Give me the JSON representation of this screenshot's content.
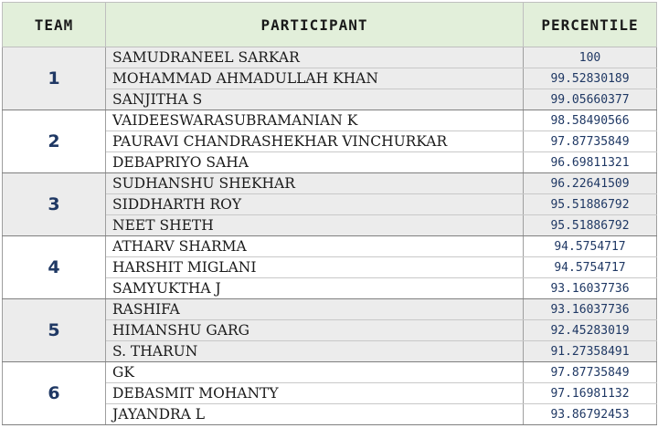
{
  "headers": {
    "team": "TEAM",
    "participant": "PARTICIPANT",
    "percentile": "PERCENTILE"
  },
  "teams": [
    {
      "team": "1",
      "members": [
        {
          "name": "SAMUDRANEEL SARKAR",
          "percentile": "100"
        },
        {
          "name": "MOHAMMAD AHMADULLAH KHAN",
          "percentile": "99.52830189"
        },
        {
          "name": "SANJITHA S",
          "percentile": "99.05660377"
        }
      ]
    },
    {
      "team": "2",
      "members": [
        {
          "name": "VAIDEESWARASUBRAMANIAN K",
          "percentile": "98.58490566"
        },
        {
          "name": "PAURAVI CHANDRASHEKHAR VINCHURKAR",
          "percentile": "97.87735849"
        },
        {
          "name": "DEBAPRIYO SAHA",
          "percentile": "96.69811321"
        }
      ]
    },
    {
      "team": "3",
      "members": [
        {
          "name": "SUDHANSHU SHEKHAR",
          "percentile": "96.22641509"
        },
        {
          "name": "SIDDHARTH ROY",
          "percentile": "95.51886792"
        },
        {
          "name": "NEET SHETH",
          "percentile": "95.51886792"
        }
      ]
    },
    {
      "team": "4",
      "members": [
        {
          "name": "ATHARV SHARMA",
          "percentile": "94.5754717"
        },
        {
          "name": "HARSHIT MIGLANI",
          "percentile": "94.5754717"
        },
        {
          "name": "SAMYUKTHA J",
          "percentile": "93.16037736"
        }
      ]
    },
    {
      "team": "5",
      "members": [
        {
          "name": "RASHIFA",
          "percentile": "93.16037736"
        },
        {
          "name": "HIMANSHU GARG",
          "percentile": "92.45283019"
        },
        {
          "name": "S. THARUN",
          "percentile": "91.27358491"
        }
      ]
    },
    {
      "team": "6",
      "members": [
        {
          "name": "GK",
          "percentile": "97.87735849"
        },
        {
          "name": "DEBASMIT MOHANTY",
          "percentile": "97.16981132"
        },
        {
          "name": "JAYANDRA L",
          "percentile": "93.86792453"
        }
      ]
    }
  ]
}
